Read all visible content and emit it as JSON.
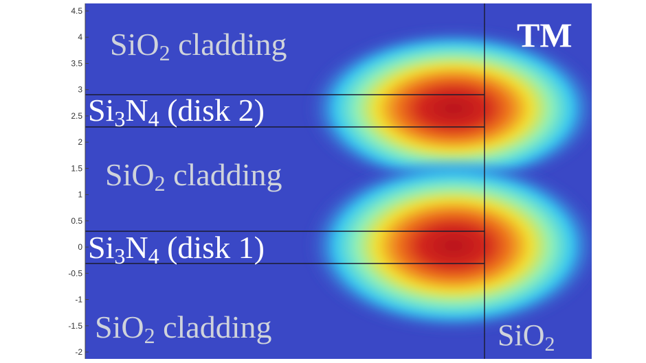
{
  "axis": {
    "ticks": [
      "4.5",
      "4",
      "3.5",
      "3",
      "2.5",
      "2",
      "1.5",
      "1",
      "0.5",
      "0",
      "-0.5",
      "-1",
      "-1.5",
      "-2"
    ]
  },
  "labels": {
    "sio2_top": {
      "main": "SiO",
      "sub": "2",
      "rest": " cladding"
    },
    "disk2": {
      "a": "Si",
      "a_sub": "3",
      "b": "N",
      "b_sub": "4",
      "rest": " (disk 2)"
    },
    "sio2_mid": {
      "main": "SiO",
      "sub": "2",
      "rest": " cladding"
    },
    "disk1": {
      "a": "Si",
      "a_sub": "3",
      "b": "N",
      "b_sub": "4",
      "rest": " (disk 1)"
    },
    "sio2_bot": {
      "main": "SiO",
      "sub": "2",
      "rest": " cladding"
    },
    "mode": "TM",
    "sio2_right": {
      "main": "SiO",
      "sub": "2"
    }
  },
  "colors": {
    "background": "#3a48c6",
    "layer_line": "#1a1a2e",
    "field_core": "#b8141b"
  }
}
